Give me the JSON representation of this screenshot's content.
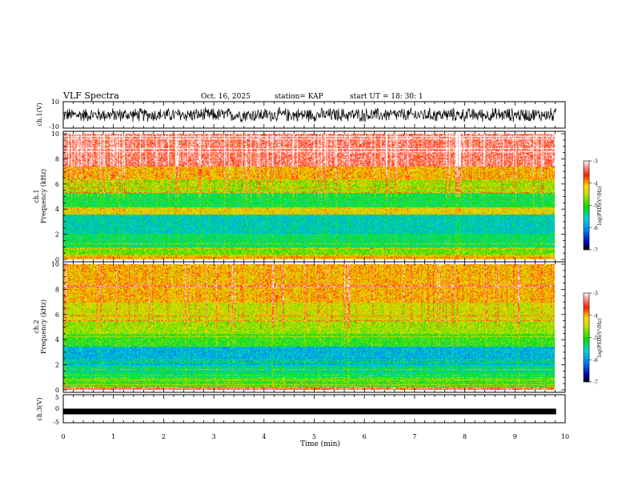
{
  "header": {
    "title": "VLF Spectra",
    "date": "Oct. 16, 2025",
    "station": "station= KAP",
    "start": "start  UT =   18: 30: 1"
  },
  "chart_data": [
    {
      "type": "line",
      "name": "ch1-waveform",
      "ylabel": "ch.1(V)",
      "ylim": [
        -10,
        10
      ],
      "tick_labels": [
        "10",
        "-10"
      ],
      "xlim": [
        0,
        9.82
      ],
      "amplitude_range": [
        -6,
        6
      ],
      "description_units": "V"
    },
    {
      "type": "heatmap",
      "name": "ch1-spectrogram",
      "ylabel_line1": "ch.1",
      "ylabel_line2": "Frequency (kHz)",
      "ylim": [
        0,
        10
      ],
      "yticks": [
        "0",
        "2",
        "4",
        "6",
        "8",
        "10"
      ],
      "xlim": [
        0,
        9.82
      ],
      "bands": [
        {
          "from": 0.0,
          "to": 0.4,
          "level": -4.2
        },
        {
          "from": 0.4,
          "to": 1.0,
          "level": -4.8
        },
        {
          "from": 1.0,
          "to": 2.1,
          "level": -5.3
        },
        {
          "from": 2.1,
          "to": 3.6,
          "level": -5.6
        },
        {
          "from": 3.6,
          "to": 4.2,
          "level": -4.3
        },
        {
          "from": 4.2,
          "to": 5.3,
          "level": -5.2
        },
        {
          "from": 5.3,
          "to": 6.4,
          "level": -4.6
        },
        {
          "from": 6.4,
          "to": 7.4,
          "level": -4.1
        },
        {
          "from": 7.4,
          "to": 10.0,
          "level": -3.4
        }
      ],
      "colorbar": {
        "label": "log(PSD)(V²/Hz)",
        "range": [
          -7,
          -3
        ],
        "ticks": [
          "-3",
          "-4",
          "-5",
          "-6",
          "-7"
        ]
      }
    },
    {
      "type": "heatmap",
      "name": "ch2-spectrogram",
      "ylabel_line1": "ch.2",
      "ylabel_line2": "Frequency (kHz)",
      "ylim": [
        0,
        10
      ],
      "yticks": [
        "0",
        "2",
        "4",
        "6",
        "8",
        "10"
      ],
      "xlim": [
        0,
        9.82
      ],
      "bands": [
        {
          "from": 0.0,
          "to": 0.3,
          "level": -4.0
        },
        {
          "from": 0.3,
          "to": 1.0,
          "level": -5.0
        },
        {
          "from": 1.0,
          "to": 2.0,
          "level": -5.4
        },
        {
          "from": 2.0,
          "to": 3.5,
          "level": -5.8
        },
        {
          "from": 3.5,
          "to": 4.5,
          "level": -5.0
        },
        {
          "from": 4.5,
          "to": 5.5,
          "level": -4.6
        },
        {
          "from": 5.5,
          "to": 7.0,
          "level": -4.4
        },
        {
          "from": 7.0,
          "to": 10.0,
          "level": -4.1
        }
      ],
      "colorbar": {
        "label": "log(PSD)(V²/Hz)",
        "range": [
          -7,
          -3
        ],
        "ticks": [
          "-3",
          "-4",
          "-5",
          "-6",
          "-7"
        ]
      }
    },
    {
      "type": "line",
      "name": "ch3-waveform",
      "ylabel": "ch.3(V)",
      "ylim": [
        -5,
        5
      ],
      "tick_labels": [
        "5",
        "0",
        "-5"
      ],
      "xlim": [
        0,
        9.82
      ],
      "level": -1,
      "thickness_v": 1.2,
      "xlabel": "Time (min)",
      "xticks": [
        "0",
        "1",
        "2",
        "3",
        "4",
        "5",
        "6",
        "7",
        "8",
        "9",
        "10"
      ],
      "xrange": [
        0,
        10
      ]
    }
  ]
}
